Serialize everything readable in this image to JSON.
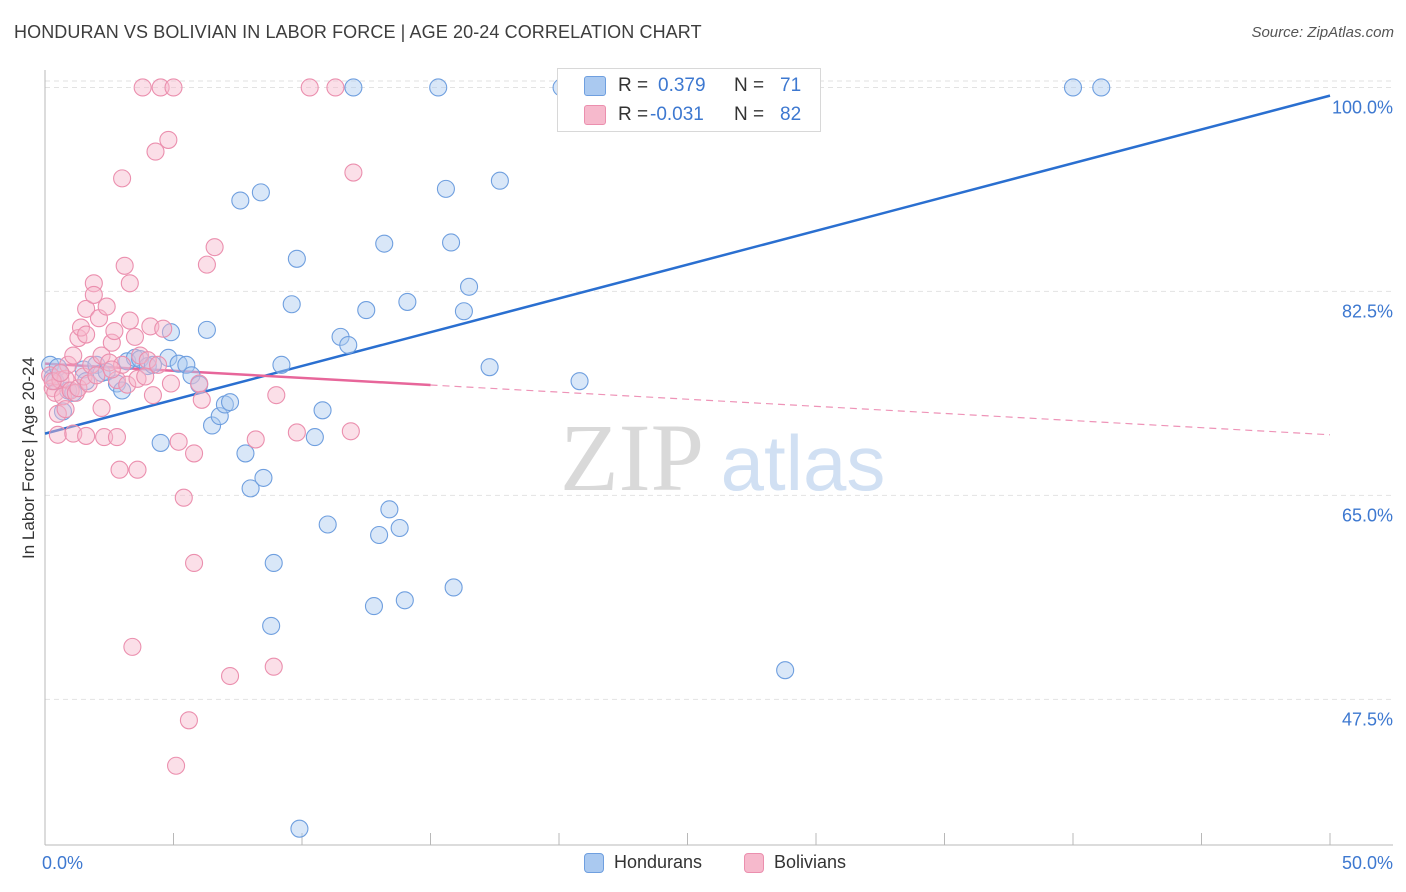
{
  "title": "HONDURAN VS BOLIVIAN IN LABOR FORCE | AGE 20-24 CORRELATION CHART",
  "source": "Source: ZipAtlas.com",
  "watermark": {
    "zip": "ZIP",
    "atlas": "atlas"
  },
  "colors": {
    "blue_fill": "#aac9f0",
    "blue_stroke": "#6f9fdf",
    "blue_line": "#2a6fd0",
    "pink_fill": "#f6b9cc",
    "pink_stroke": "#eb8fae",
    "pink_line": "#e7669a",
    "axis_label": "#3d78d0",
    "grid": "#e2e2e2"
  },
  "legend": {
    "rows": [
      {
        "r_label": "R =",
        "r_value": "0.379",
        "n_label": "N =",
        "n_value": "71",
        "series": "hondurans"
      },
      {
        "r_label": "R =",
        "r_value": "-0.031",
        "n_label": "N =",
        "n_value": "82",
        "series": "bolivians"
      }
    ]
  },
  "bottom_legend": [
    {
      "label": "Hondurans",
      "series": "hondurans"
    },
    {
      "label": "Bolivians",
      "series": "bolivians"
    }
  ],
  "chart_data": {
    "type": "scatter",
    "title": "HONDURAN VS BOLIVIAN IN LABOR FORCE | AGE 20-24 CORRELATION CHART",
    "xlabel": "",
    "ylabel": "In Labor Force | Age 20-24",
    "xlim": [
      0,
      50
    ],
    "ylim": [
      35,
      101.5
    ],
    "x_tick_labels": [
      {
        "value": 0,
        "label": "0.0%"
      },
      {
        "value": 50,
        "label": "50.0%"
      }
    ],
    "x_minor_ticks": [
      5,
      10,
      15,
      20,
      25,
      30,
      35,
      40,
      45
    ],
    "y_ticks": [
      {
        "value": 47.5,
        "label": "47.5%"
      },
      {
        "value": 65.0,
        "label": "65.0%"
      },
      {
        "value": 82.5,
        "label": "82.5%"
      },
      {
        "value": 100.0,
        "label": "100.0%"
      }
    ],
    "series": [
      {
        "name": "Hondurans",
        "key": "hondurans",
        "trend": {
          "x0": 0,
          "y0": 70.3,
          "x1": 50,
          "y1": 99.3,
          "dashed_from": null
        },
        "points": [
          [
            0.2,
            76.2
          ],
          [
            0.3,
            75.1
          ],
          [
            0.4,
            74.8
          ],
          [
            0.5,
            76.0
          ],
          [
            0.6,
            75.5
          ],
          [
            0.7,
            72.2
          ],
          [
            0.9,
            74.0
          ],
          [
            1.1,
            73.8
          ],
          [
            1.5,
            75.8
          ],
          [
            1.6,
            74.8
          ],
          [
            2.0,
            76.2
          ],
          [
            2.2,
            75.5
          ],
          [
            2.4,
            75.6
          ],
          [
            2.8,
            74.6
          ],
          [
            3.0,
            74.0
          ],
          [
            3.2,
            76.5
          ],
          [
            3.5,
            76.8
          ],
          [
            3.7,
            76.7
          ],
          [
            4.0,
            76.1
          ],
          [
            4.2,
            76.2
          ],
          [
            4.5,
            69.5
          ],
          [
            4.8,
            76.8
          ],
          [
            4.9,
            79.0
          ],
          [
            5.2,
            76.3
          ],
          [
            5.5,
            76.2
          ],
          [
            5.7,
            75.3
          ],
          [
            6.0,
            74.5
          ],
          [
            6.3,
            79.2
          ],
          [
            6.5,
            71.0
          ],
          [
            6.8,
            71.8
          ],
          [
            7.0,
            72.8
          ],
          [
            7.2,
            73.0
          ],
          [
            7.6,
            90.3
          ],
          [
            7.8,
            68.6
          ],
          [
            8.0,
            65.6
          ],
          [
            8.4,
            91.0
          ],
          [
            8.5,
            66.5
          ],
          [
            8.8,
            53.8
          ],
          [
            8.9,
            59.2
          ],
          [
            9.2,
            76.2
          ],
          [
            9.6,
            81.4
          ],
          [
            9.8,
            85.3
          ],
          [
            9.9,
            36.4
          ],
          [
            10.5,
            70.0
          ],
          [
            10.8,
            72.3
          ],
          [
            11.0,
            62.5
          ],
          [
            11.5,
            78.6
          ],
          [
            11.8,
            77.9
          ],
          [
            12.0,
            100.0
          ],
          [
            12.5,
            80.9
          ],
          [
            12.8,
            55.5
          ],
          [
            13.0,
            61.6
          ],
          [
            13.2,
            86.6
          ],
          [
            13.4,
            63.8
          ],
          [
            13.8,
            62.2
          ],
          [
            14.0,
            56.0
          ],
          [
            14.1,
            81.6
          ],
          [
            15.6,
            91.3
          ],
          [
            15.8,
            86.7
          ],
          [
            15.9,
            57.1
          ],
          [
            16.3,
            80.8
          ],
          [
            16.5,
            82.9
          ],
          [
            17.3,
            76.0
          ],
          [
            17.7,
            92.0
          ],
          [
            20.1,
            100.0
          ],
          [
            20.8,
            74.8
          ],
          [
            23.5,
            100.0
          ],
          [
            28.8,
            50.0
          ],
          [
            40.0,
            100.0
          ],
          [
            41.1,
            100.0
          ],
          [
            15.3,
            100.0
          ]
        ]
      },
      {
        "name": "Bolivians",
        "key": "bolivians",
        "trend": {
          "x0": 0,
          "y0": 76.3,
          "x1": 50,
          "y1": 70.2,
          "dashed_from": 15
        },
        "points": [
          [
            0.2,
            75.3
          ],
          [
            0.3,
            74.2
          ],
          [
            0.4,
            73.8
          ],
          [
            0.5,
            72.0
          ],
          [
            0.5,
            70.2
          ],
          [
            0.6,
            74.9
          ],
          [
            0.7,
            73.5
          ],
          [
            0.8,
            75.0
          ],
          [
            0.8,
            72.4
          ],
          [
            0.9,
            76.2
          ],
          [
            1.0,
            74.0
          ],
          [
            1.1,
            77.0
          ],
          [
            1.2,
            73.8
          ],
          [
            1.3,
            78.5
          ],
          [
            1.3,
            74.2
          ],
          [
            1.4,
            79.4
          ],
          [
            1.5,
            75.2
          ],
          [
            1.6,
            78.8
          ],
          [
            1.6,
            81.0
          ],
          [
            1.7,
            74.6
          ],
          [
            1.8,
            76.2
          ],
          [
            1.9,
            83.2
          ],
          [
            1.9,
            82.2
          ],
          [
            2.0,
            75.3
          ],
          [
            2.1,
            80.2
          ],
          [
            2.2,
            77.0
          ],
          [
            2.2,
            72.5
          ],
          [
            2.3,
            70.0
          ],
          [
            2.4,
            81.2
          ],
          [
            2.5,
            76.4
          ],
          [
            2.6,
            78.1
          ],
          [
            2.7,
            79.1
          ],
          [
            2.8,
            74.9
          ],
          [
            2.8,
            70.0
          ],
          [
            2.9,
            67.2
          ],
          [
            3.0,
            76.2
          ],
          [
            3.0,
            92.2
          ],
          [
            3.1,
            84.7
          ],
          [
            3.2,
            74.5
          ],
          [
            3.3,
            80.0
          ],
          [
            3.3,
            83.2
          ],
          [
            3.4,
            52.0
          ],
          [
            3.5,
            78.6
          ],
          [
            3.6,
            75.0
          ],
          [
            3.6,
            67.2
          ],
          [
            3.7,
            77.0
          ],
          [
            3.8,
            100.0
          ],
          [
            4.0,
            76.6
          ],
          [
            4.1,
            79.5
          ],
          [
            4.2,
            73.6
          ],
          [
            4.3,
            94.5
          ],
          [
            4.4,
            76.2
          ],
          [
            4.5,
            100.0
          ],
          [
            4.6,
            79.3
          ],
          [
            4.8,
            95.5
          ],
          [
            4.9,
            74.6
          ],
          [
            5.0,
            100.0
          ],
          [
            5.1,
            41.8
          ],
          [
            5.2,
            69.6
          ],
          [
            5.4,
            64.8
          ],
          [
            5.6,
            45.7
          ],
          [
            5.8,
            59.2
          ],
          [
            5.8,
            68.6
          ],
          [
            6.0,
            74.6
          ],
          [
            6.1,
            73.2
          ],
          [
            6.3,
            84.8
          ],
          [
            6.6,
            86.3
          ],
          [
            7.2,
            49.5
          ],
          [
            8.2,
            69.8
          ],
          [
            8.9,
            50.3
          ],
          [
            9.0,
            73.6
          ],
          [
            9.8,
            70.4
          ],
          [
            10.3,
            100.0
          ],
          [
            11.3,
            100.0
          ],
          [
            11.9,
            70.5
          ],
          [
            12.0,
            92.7
          ],
          [
            1.1,
            70.3
          ],
          [
            1.6,
            70.1
          ],
          [
            0.3,
            74.8
          ],
          [
            2.6,
            75.8
          ],
          [
            3.9,
            75.2
          ],
          [
            0.6,
            75.5
          ]
        ]
      }
    ]
  }
}
